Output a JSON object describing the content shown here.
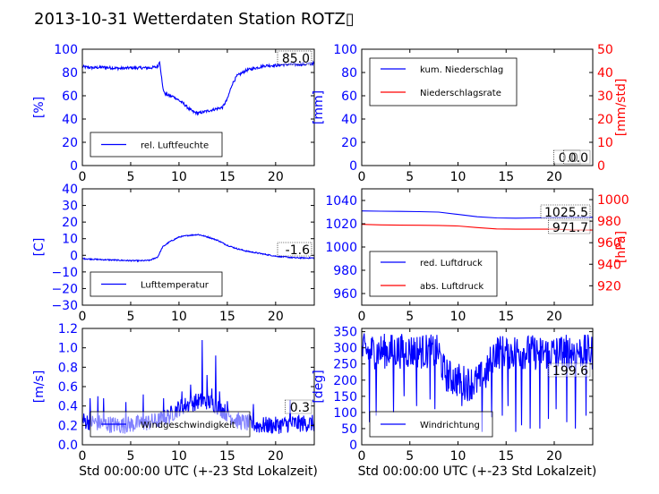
{
  "title": "2013-10-31 Wetterdaten Station ROTZ▯",
  "colors": {
    "primary": "#0000ff",
    "secondary": "#ff0000",
    "text": "#000000"
  },
  "chart_data": [
    {
      "id": "humidity",
      "type": "line",
      "xlim": [
        0,
        24
      ],
      "xticks": [
        "0",
        "5",
        "10",
        "15",
        "20"
      ],
      "ylabel": "[%]",
      "ylim": [
        0,
        100
      ],
      "yticks": [
        "0",
        "20",
        "40",
        "60",
        "80",
        "100"
      ],
      "legend": "bottom-left",
      "value_box": "85.0",
      "series": [
        {
          "name": "rel. Luftfeuchte",
          "color": "#0000ff",
          "x": [
            0,
            1,
            2,
            3,
            4,
            5,
            6,
            7,
            7.8,
            8,
            8.3,
            8.5,
            9,
            9.5,
            10,
            10.5,
            11,
            11.5,
            12,
            12.5,
            13,
            13.5,
            14,
            14.5,
            15,
            15.5,
            16,
            17,
            18,
            19,
            20,
            21,
            22,
            23,
            24
          ],
          "y": [
            85,
            84,
            84.5,
            84,
            83.5,
            84,
            84,
            84,
            85,
            90,
            68,
            62,
            60,
            59,
            56,
            53,
            49,
            46,
            45,
            46,
            47,
            48,
            49,
            50,
            57,
            70,
            77,
            82,
            84,
            86,
            86,
            87,
            87,
            87,
            88
          ],
          "noise": 1.2
        }
      ]
    },
    {
      "id": "precip",
      "type": "line",
      "xlim": [
        0,
        24
      ],
      "xticks": [
        "0",
        "5",
        "10",
        "15",
        "20"
      ],
      "ylabel": "[mm]",
      "ylim": [
        0,
        100
      ],
      "yticks": [
        "0",
        "20",
        "40",
        "60",
        "80",
        "100"
      ],
      "y2label": "[mm/std]",
      "y2lim": [
        0,
        50
      ],
      "y2ticks": [
        "0",
        "10",
        "20",
        "30",
        "40",
        "50"
      ],
      "legend": "top-left",
      "value_box": "0.0",
      "value_box2": "0.0",
      "series": [
        {
          "name": "kum. Niederschlag",
          "color": "#0000ff",
          "x": [
            0,
            24
          ],
          "y": [
            0,
            0
          ]
        },
        {
          "name": "Niederschlagsrate",
          "color": "#ff0000",
          "axis": "right",
          "x": [
            0,
            24
          ],
          "y": [
            0,
            0
          ]
        }
      ]
    },
    {
      "id": "temperature",
      "type": "line",
      "xlim": [
        0,
        24
      ],
      "xticks": [
        "0",
        "5",
        "10",
        "15",
        "20"
      ],
      "ylabel": "[C]",
      "ylim": [
        -30,
        40
      ],
      "yticks": [
        "−30",
        "−20",
        "−10",
        "0",
        "10",
        "20",
        "30",
        "40"
      ],
      "legend": "bottom-left",
      "value_box": "-1.6",
      "series": [
        {
          "name": "Lufttemperatur",
          "color": "#0000ff",
          "x": [
            0,
            1,
            2,
            3,
            4,
            5,
            6,
            7,
            7.8,
            8.3,
            9,
            10,
            11,
            12,
            13,
            14,
            15,
            16,
            17,
            18,
            19,
            20,
            21,
            22,
            23,
            24
          ],
          "y": [
            -2,
            -2.3,
            -2.6,
            -2.8,
            -3,
            -3.2,
            -3.3,
            -3,
            -1,
            5,
            8,
            11,
            12,
            12.5,
            11,
            9,
            6,
            4,
            2.5,
            1.5,
            0.5,
            -0.5,
            -1,
            -1.5,
            -1.6,
            -1.6
          ],
          "noise": 0.35
        }
      ]
    },
    {
      "id": "pressure",
      "type": "line",
      "xlim": [
        0,
        24
      ],
      "xticks": [
        "0",
        "5",
        "10",
        "15",
        "20"
      ],
      "ylim": [
        950,
        1050
      ],
      "yticks": [
        "960",
        "980",
        "1000",
        "1020",
        "1040"
      ],
      "y2label": "[hPa]",
      "y2lim": [
        902,
        1010
      ],
      "y2ticks": [
        "920",
        "940",
        "960",
        "980",
        "1000"
      ],
      "legend": "bottom-left",
      "value_box": "1025.5",
      "value_box2": "971.7",
      "series": [
        {
          "name": "red. Luftdruck",
          "color": "#0000ff",
          "x": [
            0,
            2,
            4,
            6,
            8,
            10,
            12,
            14,
            16,
            18,
            20,
            22,
            24
          ],
          "y": [
            1031,
            1030.8,
            1030.6,
            1030.4,
            1030,
            1028,
            1026,
            1025,
            1024.8,
            1025,
            1025.3,
            1025.5,
            1025.5
          ]
        },
        {
          "name": "abs. Luftdruck",
          "color": "#ff0000",
          "axis": "right",
          "x": [
            0,
            2,
            4,
            6,
            8,
            10,
            12,
            14,
            16,
            18,
            20,
            22,
            24
          ],
          "y": [
            977,
            976.5,
            976.3,
            976.2,
            976,
            975.5,
            974,
            972.8,
            972.5,
            972.5,
            972.5,
            971.8,
            971.7
          ]
        }
      ]
    },
    {
      "id": "wind",
      "type": "line",
      "xlim": [
        0,
        24
      ],
      "xticks": [
        "0",
        "5",
        "10",
        "15",
        "20"
      ],
      "xlabel": "Std 00:00:00 UTC (+-23 Std Lokalzeit)",
      "ylabel": "[m/s]",
      "ylim": [
        0,
        1.2
      ],
      "yticks": [
        "0.0",
        "0.2",
        "0.4",
        "0.6",
        "0.8",
        "1.0",
        "1.2"
      ],
      "legend": "bottom-left",
      "value_box": "0.3",
      "series": [
        {
          "name": "Windgeschwindigkeit",
          "color": "#0000ff",
          "x": [
            0,
            2,
            4,
            6,
            8,
            9,
            10,
            11,
            12,
            13,
            14,
            15,
            16,
            18,
            20,
            22,
            24
          ],
          "y": [
            0.25,
            0.22,
            0.2,
            0.22,
            0.25,
            0.3,
            0.38,
            0.42,
            0.45,
            0.45,
            0.4,
            0.32,
            0.25,
            0.2,
            0.2,
            0.22,
            0.22
          ],
          "noise": 0.09,
          "spikes": [
            [
              0.8,
              0.48
            ],
            [
              1.6,
              0.5
            ],
            [
              2.2,
              0.48
            ],
            [
              4.5,
              0.44
            ],
            [
              6.3,
              0.52
            ],
            [
              8.4,
              0.48
            ],
            [
              10.3,
              0.55
            ],
            [
              11.2,
              0.62
            ],
            [
              12.4,
              1.08
            ],
            [
              12.9,
              0.72
            ],
            [
              13.4,
              0.58
            ],
            [
              13.8,
              0.92
            ],
            [
              14.2,
              0.55
            ],
            [
              15.0,
              0.45
            ],
            [
              17.7,
              0.42
            ],
            [
              21.5,
              0.46
            ]
          ]
        }
      ]
    },
    {
      "id": "direction",
      "type": "line",
      "xlim": [
        0,
        24
      ],
      "xticks": [
        "0",
        "5",
        "10",
        "15",
        "20"
      ],
      "xlabel": "Std 00:00:00 UTC (+-23 Std Lokalzeit)",
      "ylabel": "[deg]",
      "ylim": [
        0,
        360
      ],
      "yticks": [
        "0",
        "50",
        "100",
        "150",
        "200",
        "250",
        "300",
        "350"
      ],
      "legend": "bottom-left",
      "value_box": "199.6",
      "series": [
        {
          "name": "Windrichtung",
          "color": "#0000ff",
          "x": [
            0,
            2,
            4,
            6,
            8,
            8.5,
            9,
            10,
            11,
            12,
            13,
            13.5,
            14,
            15,
            16,
            18,
            20,
            22,
            24
          ],
          "y": [
            290,
            290,
            290,
            290,
            285,
            230,
            210,
            200,
            190,
            195,
            220,
            270,
            290,
            285,
            290,
            285,
            285,
            290,
            285
          ],
          "noise": 55,
          "dips": [
            [
              0.8,
              70
            ],
            [
              1.5,
              90
            ],
            [
              3.3,
              100
            ],
            [
              4.4,
              150
            ],
            [
              5.7,
              120
            ],
            [
              7.1,
              140
            ],
            [
              7.6,
              110
            ],
            [
              10.4,
              120
            ],
            [
              12.5,
              40
            ],
            [
              13.5,
              85
            ],
            [
              14.6,
              90
            ],
            [
              15.2,
              120
            ],
            [
              16.0,
              40
            ],
            [
              16.6,
              60
            ],
            [
              17.5,
              50
            ],
            [
              18.5,
              50
            ],
            [
              19.4,
              80
            ],
            [
              20.2,
              110
            ],
            [
              21.3,
              70
            ],
            [
              22.2,
              50
            ],
            [
              23.3,
              90
            ]
          ]
        }
      ]
    }
  ]
}
